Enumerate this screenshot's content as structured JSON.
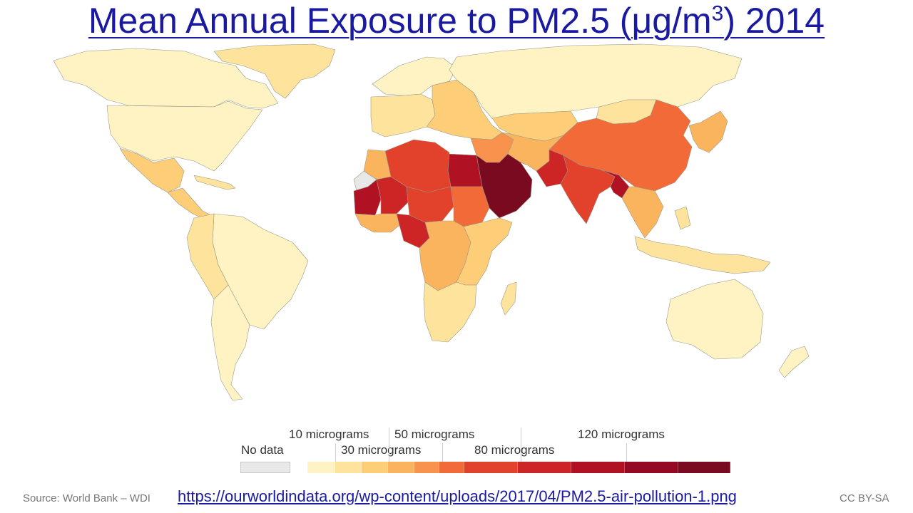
{
  "title": {
    "text": "Mean Annual Exposure to PM2.5 (μg/m",
    "superscript": "3",
    "suffix": ") 2014"
  },
  "legend": {
    "no_data_label": "No data",
    "no_data_color": "#e8e8e8",
    "scale_labels": {
      "l10": "10 micrograms",
      "l30": "30 micrograms",
      "l50": "50 micrograms",
      "l80": "80 micrograms",
      "l120": "120 micrograms"
    },
    "scale_colors": [
      "#fff3c4",
      "#fde39b",
      "#fdcd77",
      "#fbb45e",
      "#f8924c",
      "#f26a38",
      "#e2422b",
      "#cd2426",
      "#b01223",
      "#940a22",
      "#7a0a1f"
    ]
  },
  "footer": {
    "source": "Source: World Bank – WDI",
    "url": "https://ourworldindata.org/wp-content/uploads/2017/04/PM2.5-air-pollution-1.png",
    "license": "CC BY-SA"
  },
  "map_colors": {
    "c1": "#fff3c4",
    "c2": "#fde39b",
    "c3": "#fdcd77",
    "c4": "#fbb45e",
    "c5": "#f8924c",
    "c6": "#f26a38",
    "c7": "#e2422b",
    "c8": "#cd2426",
    "c9": "#b01223",
    "c10": "#7a0a1f",
    "nodata": "#e8e8e8"
  },
  "regions": [
    {
      "name": "Greenland",
      "level": "c2"
    },
    {
      "name": "Canada",
      "level": "c1"
    },
    {
      "name": "United States",
      "level": "c1"
    },
    {
      "name": "Mexico",
      "level": "c3"
    },
    {
      "name": "Central America",
      "level": "c3"
    },
    {
      "name": "Caribbean",
      "level": "c2"
    },
    {
      "name": "Brazil",
      "level": "c1"
    },
    {
      "name": "Andean South America",
      "level": "c2"
    },
    {
      "name": "Southern Cone",
      "level": "c1"
    },
    {
      "name": "Northern Europe",
      "level": "c1"
    },
    {
      "name": "Western Europe",
      "level": "c2"
    },
    {
      "name": "Eastern Europe",
      "level": "c3"
    },
    {
      "name": "Russia",
      "level": "c1"
    },
    {
      "name": "Central Asia",
      "level": "c3"
    },
    {
      "name": "Mongolia",
      "level": "c2"
    },
    {
      "name": "China",
      "level": "c6"
    },
    {
      "name": "Korea and Japan",
      "level": "c4"
    },
    {
      "name": "Middle East",
      "level": "c5"
    },
    {
      "name": "Saudi Arabia",
      "level": "c10"
    },
    {
      "name": "Egypt",
      "level": "c9"
    },
    {
      "name": "Libya and Algeria",
      "level": "c7"
    },
    {
      "name": "Morocco",
      "level": "c4"
    },
    {
      "name": "Mauritania",
      "level": "c9"
    },
    {
      "name": "Sahel",
      "level": "c8"
    },
    {
      "name": "Niger",
      "level": "c7"
    },
    {
      "name": "Sudan",
      "level": "c6"
    },
    {
      "name": "Nigeria",
      "level": "c8"
    },
    {
      "name": "West Africa",
      "level": "c4"
    },
    {
      "name": "Central Africa",
      "level": "c4"
    },
    {
      "name": "East Africa",
      "level": "c3"
    },
    {
      "name": "Southern Africa",
      "level": "c2"
    },
    {
      "name": "Madagascar",
      "level": "c2"
    },
    {
      "name": "Iran and Afghanistan",
      "level": "c4"
    },
    {
      "name": "Pakistan",
      "level": "c8"
    },
    {
      "name": "India",
      "level": "c7"
    },
    {
      "name": "Bangladesh",
      "level": "c9"
    },
    {
      "name": "Southeast Asia",
      "level": "c4"
    },
    {
      "name": "Indonesia",
      "level": "c2"
    },
    {
      "name": "Australia",
      "level": "c1"
    },
    {
      "name": "New Zealand",
      "level": "c1"
    },
    {
      "name": "Western Sahara",
      "level": "nodata"
    }
  ]
}
